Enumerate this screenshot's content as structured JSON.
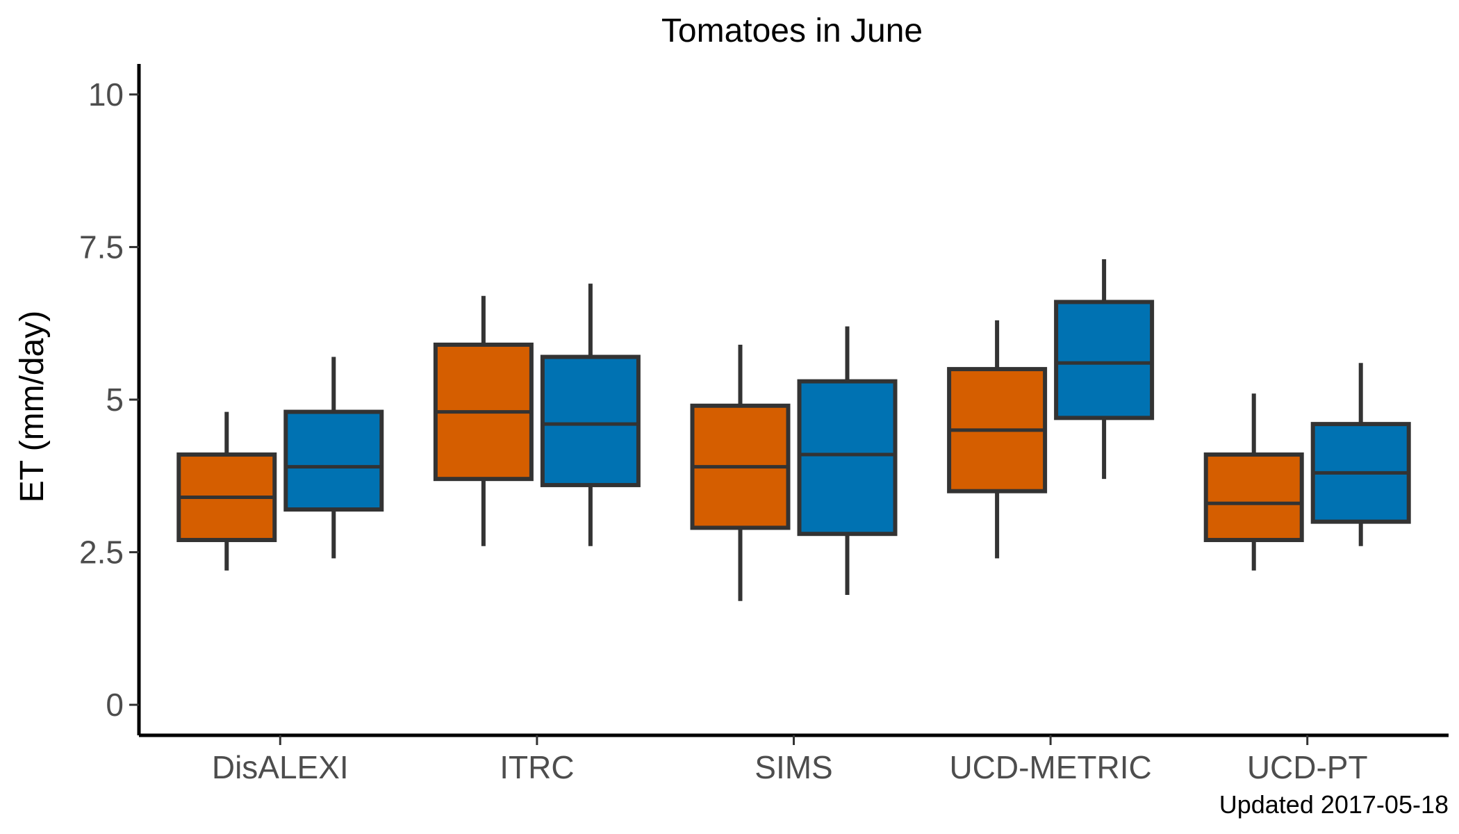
{
  "chart_data": {
    "type": "box",
    "title": "Tomatoes in June",
    "xlabel": "",
    "ylabel": "ET (mm/day)",
    "ylim": [
      -0.5,
      10.5
    ],
    "yticks": [
      0,
      2.5,
      5,
      7.5,
      10
    ],
    "ytick_labels": [
      "0",
      "2.5",
      "5",
      "7.5",
      "10"
    ],
    "categories": [
      "DisALEXI",
      "ITRC",
      "SIMS",
      "UCD-METRIC",
      "UCD-PT"
    ],
    "grid": false,
    "series": [
      {
        "color": "#D55E00",
        "boxes": [
          {
            "whisker_low": 2.2,
            "q1": 2.7,
            "median": 3.4,
            "q3": 4.1,
            "whisker_high": 4.8
          },
          {
            "whisker_low": 2.6,
            "q1": 3.7,
            "median": 4.8,
            "q3": 5.9,
            "whisker_high": 6.7
          },
          {
            "whisker_low": 1.7,
            "q1": 2.9,
            "median": 3.9,
            "q3": 4.9,
            "whisker_high": 5.9
          },
          {
            "whisker_low": 2.4,
            "q1": 3.5,
            "median": 4.5,
            "q3": 5.5,
            "whisker_high": 6.3
          },
          {
            "whisker_low": 2.2,
            "q1": 2.7,
            "median": 3.3,
            "q3": 4.1,
            "whisker_high": 5.1
          }
        ]
      },
      {
        "color": "#0072B2",
        "boxes": [
          {
            "whisker_low": 2.4,
            "q1": 3.2,
            "median": 3.9,
            "q3": 4.8,
            "whisker_high": 5.7
          },
          {
            "whisker_low": 2.6,
            "q1": 3.6,
            "median": 4.6,
            "q3": 5.7,
            "whisker_high": 6.9
          },
          {
            "whisker_low": 1.8,
            "q1": 2.8,
            "median": 4.1,
            "q3": 5.3,
            "whisker_high": 6.2
          },
          {
            "whisker_low": 3.7,
            "q1": 4.7,
            "median": 5.6,
            "q3": 6.6,
            "whisker_high": 7.3
          },
          {
            "whisker_low": 2.6,
            "q1": 3.0,
            "median": 3.8,
            "q3": 4.6,
            "whisker_high": 5.6
          }
        ]
      }
    ],
    "outline_color": "#333333",
    "axis_color": "#000000"
  },
  "caption": "Updated  2017-05-18"
}
